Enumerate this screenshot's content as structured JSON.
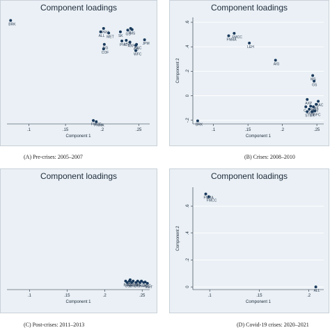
{
  "chart_data": [
    {
      "id": "A",
      "type": "scatter",
      "title": "Component loadings",
      "xlabel": "Component 1",
      "ylabel": "",
      "caption": "(A) Pre-crises: 2005–2007",
      "xticks": [
        ".1",
        ".15",
        ".2",
        ".25"
      ],
      "xtick_values": [
        0.1,
        0.15,
        0.2,
        0.25
      ],
      "yticks": [],
      "ytick_values": [],
      "xlim": [
        0.07,
        0.265
      ],
      "ylim": [
        -0.35,
        0.63
      ],
      "points": [
        {
          "label": "BRK",
          "x": 0.075,
          "y": 0.56
        },
        {
          "label": "PRU",
          "x": 0.202,
          "y": 0.49
        },
        {
          "label": "ALL",
          "x": 0.198,
          "y": 0.46
        },
        {
          "label": "MET",
          "x": 0.209,
          "y": 0.45
        },
        {
          "label": "SK",
          "x": 0.225,
          "y": 0.46
        },
        {
          "label": "C",
          "x": 0.239,
          "y": 0.49
        },
        {
          "label": "MS",
          "x": 0.241,
          "y": 0.48
        },
        {
          "label": "GS",
          "x": 0.235,
          "y": 0.475
        },
        {
          "label": "JPM",
          "x": 0.258,
          "y": 0.39
        },
        {
          "label": "USB",
          "x": 0.233,
          "y": 0.385
        },
        {
          "label": "PNC",
          "x": 0.227,
          "y": 0.38
        },
        {
          "label": "AIG",
          "x": 0.203,
          "y": 0.35
        },
        {
          "label": "BAC",
          "x": 0.247,
          "y": 0.35
        },
        {
          "label": "AXP",
          "x": 0.238,
          "y": 0.37
        },
        {
          "label": "CB",
          "x": 0.246,
          "y": 0.34
        },
        {
          "label": "COF",
          "x": 0.202,
          "y": 0.31
        },
        {
          "label": "WFC",
          "x": 0.246,
          "y": 0.295
        },
        {
          "label": "FMCC",
          "x": 0.188,
          "y": -0.32
        },
        {
          "label": "FNMA",
          "x": 0.192,
          "y": -0.33
        }
      ]
    },
    {
      "id": "B",
      "type": "scatter",
      "title": "Component loadings",
      "xlabel": "Component 1",
      "ylabel": "Component 2",
      "caption": "(B) Crises: 2008–2010",
      "xticks": [
        ".1",
        ".15",
        ".2",
        ".25"
      ],
      "xtick_values": [
        0.1,
        0.15,
        0.2,
        0.25
      ],
      "yticks": [
        ".6",
        ".4",
        ".2",
        "0",
        "-.2"
      ],
      "ytick_values": [
        0.6,
        0.4,
        0.2,
        0,
        -0.2
      ],
      "xlim": [
        0.07,
        0.26
      ],
      "ylim": [
        -0.23,
        0.64
      ],
      "points": [
        {
          "label": "FMCC",
          "x": 0.13,
          "y": 0.51
        },
        {
          "label": "FNMA",
          "x": 0.122,
          "y": 0.49
        },
        {
          "label": "LEH",
          "x": 0.152,
          "y": 0.43
        },
        {
          "label": "AIG",
          "x": 0.19,
          "y": 0.29
        },
        {
          "label": "MS",
          "x": 0.244,
          "y": 0.165
        },
        {
          "label": "GS",
          "x": 0.246,
          "y": 0.12
        },
        {
          "label": "AXP",
          "x": 0.236,
          "y": -0.03
        },
        {
          "label": "BAC",
          "x": 0.252,
          "y": -0.045
        },
        {
          "label": "PNC",
          "x": 0.241,
          "y": -0.085
        },
        {
          "label": "BK",
          "x": 0.249,
          "y": -0.07
        },
        {
          "label": "C",
          "x": 0.234,
          "y": -0.09
        },
        {
          "label": "JPM",
          "x": 0.245,
          "y": -0.09
        },
        {
          "label": "USB",
          "x": 0.239,
          "y": -0.11
        },
        {
          "label": "WFC",
          "x": 0.247,
          "y": -0.125
        },
        {
          "label": "STT",
          "x": 0.236,
          "y": -0.13
        },
        {
          "label": "BK",
          "x": 0.243,
          "y": -0.13
        },
        {
          "label": "BRK",
          "x": 0.077,
          "y": -0.205
        }
      ]
    },
    {
      "id": "C",
      "type": "scatter",
      "title": "Component loadings",
      "xlabel": "Component 1",
      "ylabel": "",
      "caption": "(C) Post-crises: 2011–2013",
      "xticks": [
        ".1",
        ".15",
        ".2",
        ".25"
      ],
      "xtick_values": [
        0.1,
        0.15,
        0.2,
        0.25
      ],
      "yticks": [],
      "ytick_values": [],
      "xlim": [
        0.07,
        0.26
      ],
      "ylim": [
        -0.6,
        0.6
      ],
      "points": [
        {
          "label": "AXP",
          "x": 0.234,
          "y": -0.49
        },
        {
          "label": "BAC",
          "x": 0.228,
          "y": -0.505
        },
        {
          "label": "GS",
          "x": 0.233,
          "y": -0.505
        },
        {
          "label": "JPM",
          "x": 0.238,
          "y": -0.505
        },
        {
          "label": "MS",
          "x": 0.244,
          "y": -0.505
        },
        {
          "label": "C",
          "x": 0.249,
          "y": -0.505
        },
        {
          "label": "WFC",
          "x": 0.254,
          "y": -0.515
        },
        {
          "label": "USB",
          "x": 0.23,
          "y": -0.52
        },
        {
          "label": "PNC",
          "x": 0.236,
          "y": -0.52
        },
        {
          "label": "STT",
          "x": 0.242,
          "y": -0.52
        },
        {
          "label": "BK",
          "x": 0.247,
          "y": -0.52
        },
        {
          "label": "AIG",
          "x": 0.252,
          "y": -0.52
        },
        {
          "label": "MET",
          "x": 0.257,
          "y": -0.53
        }
      ]
    },
    {
      "id": "D",
      "type": "scatter",
      "title": "Component loadings",
      "xlabel": "Component 1",
      "ylabel": "Component 2",
      "caption": "(D) Covid-19 crises: 2020–2021",
      "xticks": [
        ".1",
        ".15",
        ".2"
      ],
      "xtick_values": [
        0.1,
        0.15,
        0.2
      ],
      "yticks": [
        ".6",
        ".4",
        ".2",
        "0"
      ],
      "ytick_values": [
        0.6,
        0.4,
        0.2,
        0
      ],
      "xlim": [
        0.083,
        0.215
      ],
      "ylim": [
        -0.02,
        0.74
      ],
      "points": [
        {
          "label": "FNMA",
          "x": 0.096,
          "y": 0.69
        },
        {
          "label": "FMCC",
          "x": 0.099,
          "y": 0.67
        },
        {
          "label": "ALL",
          "x": 0.207,
          "y": 0
        }
      ]
    }
  ],
  "colors": {
    "plot_bg": "#eaf0f5",
    "frame_border": "#c8d0d8",
    "grid": "#ffffff",
    "marker": "#1a3a5c",
    "text": "#1c2a3a"
  }
}
